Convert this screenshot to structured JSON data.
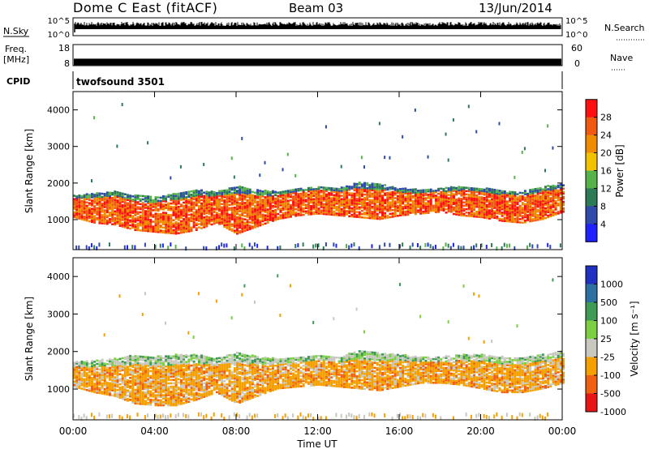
{
  "header": {
    "station": "Dome C East (fitACF)",
    "beam": "Beam 03",
    "date": "13/Jun/2014"
  },
  "status_panels": {
    "nsky_label": "N.Sky",
    "nsearch_label": "N.Search",
    "freq_label_line1": "Freq.",
    "freq_label_line2": "[MHz]",
    "nave_label": "Nave",
    "cpid_label": "CPID",
    "cpid_value": "twofsound 3501",
    "noise_ticks": [
      "10^5",
      "10^0"
    ],
    "freq_ticks": [
      "18",
      "8"
    ],
    "nave_ticks": [
      "60",
      "0"
    ],
    "freq_level_mhz": 11
  },
  "colors": {
    "axis": "#000000",
    "power_scale": [
      "#1f22ff",
      "#2f4aa8",
      "#2d7a57",
      "#56b34a",
      "#f2c200",
      "#f08c00",
      "#f05a10",
      "#ff1010"
    ],
    "velocity_scale": [
      "#e81515",
      "#f06010",
      "#f5a000",
      "#c8c8c0",
      "#7ad040",
      "#3f9a55",
      "#2c6fa0",
      "#2030c0"
    ]
  },
  "chart_data": [
    {
      "type": "heatmap",
      "name": "power",
      "xlabel": "",
      "ylabel": "Slant Range [km]",
      "x_ticks": [
        "00:00",
        "04:00",
        "08:00",
        "12:00",
        "16:00",
        "20:00",
        "00:00"
      ],
      "y_ticks": [
        1000,
        2000,
        3000,
        4000
      ],
      "x_range_hours": [
        0,
        24
      ],
      "ylim": [
        180,
        4500
      ],
      "colorbar_label": "Power [dB]",
      "colorbar_ticks": [
        4,
        8,
        12,
        16,
        20,
        24,
        28
      ],
      "colorbar_range": [
        0,
        32
      ],
      "band_upper_km": [
        1650,
        1700,
        1750,
        1650,
        1600,
        1700,
        1800,
        1750,
        1900,
        1800,
        1750,
        1850,
        1900,
        1850,
        2000,
        1950,
        1850,
        1800,
        1850,
        1900,
        1850,
        1800,
        1750,
        1900,
        1950
      ],
      "band_lower_km": [
        1050,
        900,
        850,
        700,
        650,
        600,
        700,
        900,
        600,
        800,
        1000,
        1100,
        1150,
        1100,
        1050,
        1000,
        1100,
        1150,
        1200,
        1100,
        1050,
        950,
        900,
        1000,
        1200
      ]
    },
    {
      "type": "heatmap",
      "name": "velocity",
      "xlabel": "Time UT",
      "ylabel": "Slant Range [km]",
      "x_ticks": [
        "00:00",
        "04:00",
        "08:00",
        "12:00",
        "16:00",
        "20:00",
        "00:00"
      ],
      "y_ticks": [
        1000,
        2000,
        3000,
        4000
      ],
      "x_range_hours": [
        0,
        24
      ],
      "ylim": [
        180,
        4500
      ],
      "colorbar_label": "Velocity [m s⁻¹]",
      "colorbar_ticks": [
        "1000",
        "500",
        "100",
        "25",
        "-25",
        "-100",
        "-500",
        "-1000"
      ],
      "band_upper_km": [
        1700,
        1750,
        1800,
        1900,
        1850,
        1900,
        1900,
        1800,
        1950,
        1850,
        1800,
        1850,
        1900,
        1850,
        2000,
        1950,
        1900,
        1850,
        1850,
        1900,
        1900,
        1850,
        1800,
        1900,
        2000
      ],
      "band_lower_km": [
        1050,
        900,
        800,
        600,
        550,
        550,
        700,
        900,
        600,
        800,
        1000,
        1050,
        1100,
        1050,
        1000,
        950,
        1050,
        1150,
        1150,
        1100,
        1000,
        900,
        900,
        1000,
        1150
      ]
    }
  ]
}
